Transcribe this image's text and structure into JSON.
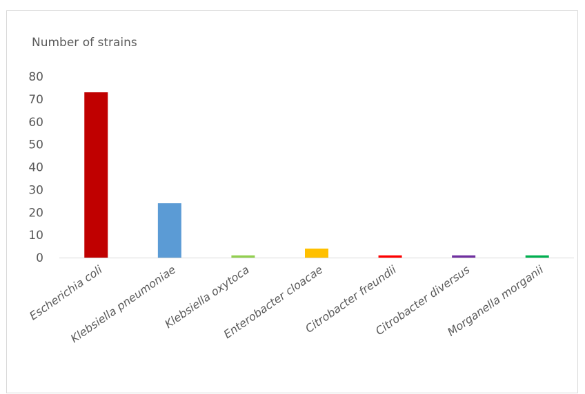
{
  "chart_data": {
    "type": "bar",
    "title": "",
    "ylabel": "Number of strains",
    "xlabel": "",
    "ylim": [
      0,
      80
    ],
    "yticks": [
      0,
      10,
      20,
      30,
      40,
      50,
      60,
      70,
      80
    ],
    "grid": false,
    "categories": [
      "Escherichia coli",
      "Klebsiella pneumoniae",
      "Klebsiella oxytoca",
      "Enterobacter cloacae",
      "Citrobacter freundii",
      "Citrobacter diversus",
      "Morganella morganii"
    ],
    "values": [
      73,
      24,
      1,
      4,
      1,
      1,
      1
    ],
    "colors": [
      "#c00000",
      "#5b9bd5",
      "#92d050",
      "#ffc000",
      "#ff0000",
      "#7030a0",
      "#00b050"
    ]
  }
}
